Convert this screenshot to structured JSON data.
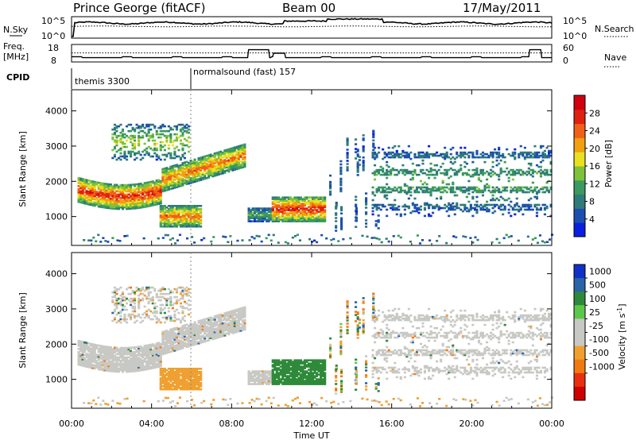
{
  "header": {
    "station": "Prince George (fitACF)",
    "beam": "Beam 00",
    "date": "17/May/2011"
  },
  "summary_labels": {
    "nsky": "N.Sky",
    "nsky_top": "10^5",
    "nsky_bottom": "10^0",
    "freq": "Freq.",
    "freq_unit": "[MHz]",
    "freq_top": "18",
    "freq_bottom": "8",
    "cpid": "CPID",
    "nsearch": "N.Search",
    "nsearch_top": "10^5",
    "nsearch_bottom": "10^0",
    "nave": "Nave",
    "nave_top": "60",
    "nave_bottom": "0"
  },
  "cpid_segments": [
    {
      "label": "themis 3300",
      "start_hour": 0
    },
    {
      "label": "normalsound (fast) 157",
      "start_hour": 6
    }
  ],
  "colors": {
    "power_scale": [
      "#0a1fe0",
      "#1c4fb0",
      "#2f7a7a",
      "#3a9a60",
      "#7ec23b",
      "#e8e020",
      "#f0a010",
      "#f06018",
      "#e02010",
      "#d00010"
    ],
    "velocity_scale": [
      "#1030c8",
      "#2a64a8",
      "#2e8a3a",
      "#5cc84a",
      "#c8c8c4",
      "#c8c8c4",
      "#f0a030",
      "#f07a10",
      "#e83010",
      "#d00000"
    ]
  },
  "chart_data": [
    {
      "type": "heatmap",
      "title": "",
      "quantity": "Power",
      "ylabel": "Slant Range [km]",
      "xlabel": "",
      "xlim": [
        "00:00",
        "24:00"
      ],
      "ylim": [
        180,
        4600
      ],
      "yticks": [
        1000,
        2000,
        3000,
        4000
      ],
      "colorbar": {
        "label": "Power [dB]",
        "range": [
          0,
          32
        ],
        "ticks": [
          4,
          8,
          12,
          16,
          20,
          24,
          28
        ]
      },
      "regions": [
        {
          "name": "main_band_early",
          "t_start": 0.3,
          "t_end": 4.5,
          "range_km": [
            1400,
            2200
          ],
          "peak_db": 28
        },
        {
          "name": "upper_patch",
          "t_start": 2.0,
          "t_end": 5.8,
          "range_km": [
            2600,
            3600
          ],
          "peak_db": 16
        },
        {
          "name": "rising_band",
          "t_start": 4.5,
          "t_end": 8.6,
          "range_km": [
            1900,
            2900
          ],
          "peak_db": 24
        },
        {
          "name": "low_patch",
          "t_start": 4.4,
          "t_end": 6.4,
          "range_km": [
            700,
            1300
          ],
          "peak_db": 24
        },
        {
          "name": "mid_patch",
          "t_start": 8.8,
          "t_end": 10.0,
          "range_km": [
            850,
            1250
          ],
          "peak_db": 12
        },
        {
          "name": "bright_patch",
          "t_start": 10.0,
          "t_end": 12.6,
          "range_km": [
            850,
            1550
          ],
          "peak_db": 28
        },
        {
          "name": "evening_bands",
          "t_start": 15.0,
          "t_end": 24.0,
          "range_km": [
            1000,
            3000
          ],
          "peak_db": 12
        }
      ]
    },
    {
      "type": "heatmap",
      "title": "",
      "quantity": "Velocity",
      "ylabel": "Slant Range [km]",
      "xlabel": "Time UT",
      "xlim": [
        "00:00",
        "24:00"
      ],
      "xticks": [
        "00:00",
        "04:00",
        "08:00",
        "12:00",
        "16:00",
        "20:00",
        "00:00"
      ],
      "ylim": [
        180,
        4600
      ],
      "yticks": [
        1000,
        2000,
        3000,
        4000
      ],
      "colorbar": {
        "label": "Velocity [m s^-1]",
        "ticks": [
          "1000",
          "500",
          "100",
          "25",
          "-25",
          "-100",
          "-500",
          "-1000"
        ]
      },
      "regions": [
        {
          "name": "ground_scatter_band",
          "t_start": 0.3,
          "t_end": 8.6,
          "range_km": [
            1500,
            2900
          ],
          "velocity": 0
        },
        {
          "name": "orange_patch",
          "t_start": 4.4,
          "t_end": 6.4,
          "range_km": [
            700,
            1300
          ],
          "velocity": -500
        },
        {
          "name": "gray_mid_patch",
          "t_start": 8.8,
          "t_end": 10.0,
          "range_km": [
            850,
            1250
          ],
          "velocity": 0
        },
        {
          "name": "green_patch",
          "t_start": 10.0,
          "t_end": 12.6,
          "range_km": [
            850,
            1550
          ],
          "velocity": 300
        },
        {
          "name": "evening_gray",
          "t_start": 15.0,
          "t_end": 24.0,
          "range_km": [
            1000,
            3000
          ],
          "velocity": 0
        }
      ]
    }
  ]
}
